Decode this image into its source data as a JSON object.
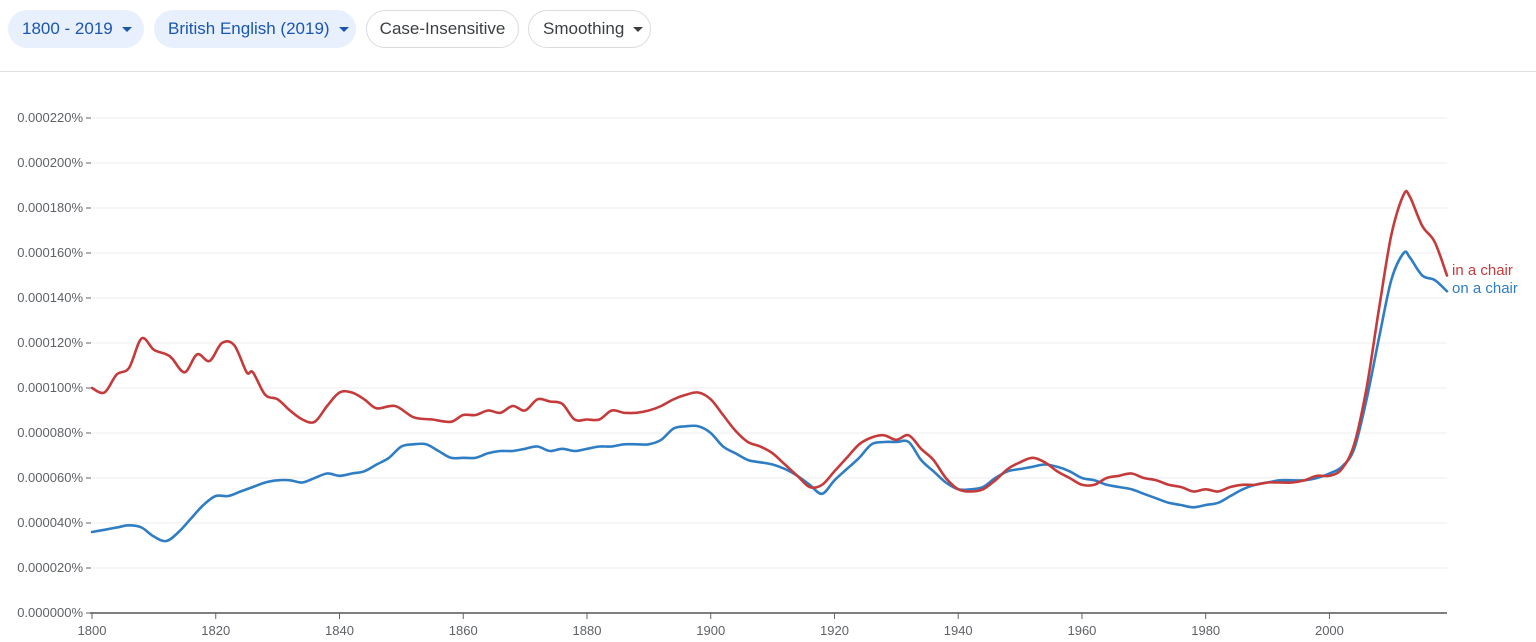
{
  "toolbar": {
    "years": "1800 - 2019",
    "corpus": "British English (2019)",
    "case": "Case-Insensitive",
    "smoothing": "Smoothing"
  },
  "colors": {
    "chip_bg": "#e8f0fe",
    "chip_text": "#1a56b0",
    "in_a_chair": "#c53b3b",
    "on_a_chair": "#2f7ec5"
  },
  "chart_data": {
    "type": "line",
    "title": "",
    "xlabel": "",
    "ylabel": "",
    "xlim": [
      1800,
      2019
    ],
    "ylim": [
      0,
      0.00022
    ],
    "x_ticks": [
      1800,
      1820,
      1840,
      1860,
      1880,
      1900,
      1920,
      1940,
      1960,
      1980,
      2000
    ],
    "x_tick_labels": [
      "1800",
      "1820",
      "1840",
      "1860",
      "1880",
      "1900",
      "1920",
      "1940",
      "1960",
      "1980",
      "2000"
    ],
    "y_ticks": [
      0,
      2e-05,
      4e-05,
      6e-05,
      8e-05,
      0.0001,
      0.00012,
      0.00014,
      0.00016,
      0.00018,
      0.0002,
      0.00022
    ],
    "y_tick_labels": [
      "0.000000%",
      "0.000020%",
      "0.000040%",
      "0.000060%",
      "0.000080%",
      "0.000100%",
      "0.000120%",
      "0.000140%",
      "0.000160%",
      "0.000180%",
      "0.000200%",
      "0.000220%"
    ],
    "grid": true,
    "series": [
      {
        "name": "in a chair",
        "color": "#c53b3b",
        "points": [
          [
            1800,
            0.0001
          ],
          [
            1802,
            9.8e-05
          ],
          [
            1804,
            0.000106
          ],
          [
            1806,
            0.000109
          ],
          [
            1808,
            0.000122
          ],
          [
            1810,
            0.000117
          ],
          [
            1812,
            0.000115
          ],
          [
            1813,
            0.000113
          ],
          [
            1815,
            0.000107
          ],
          [
            1817,
            0.000115
          ],
          [
            1819,
            0.000112
          ],
          [
            1821,
            0.00012
          ],
          [
            1823,
            0.000119
          ],
          [
            1825,
            0.000107
          ],
          [
            1826,
            0.000107
          ],
          [
            1828,
            9.7e-05
          ],
          [
            1830,
            9.5e-05
          ],
          [
            1832,
            9e-05
          ],
          [
            1834,
            8.6e-05
          ],
          [
            1836,
            8.5e-05
          ],
          [
            1838,
            9.2e-05
          ],
          [
            1840,
            9.8e-05
          ],
          [
            1842,
            9.8e-05
          ],
          [
            1844,
            9.5e-05
          ],
          [
            1846,
            9.1e-05
          ],
          [
            1849,
            9.2e-05
          ],
          [
            1852,
            8.7e-05
          ],
          [
            1855,
            8.6e-05
          ],
          [
            1858,
            8.5e-05
          ],
          [
            1860,
            8.8e-05
          ],
          [
            1862,
            8.8e-05
          ],
          [
            1864,
            9e-05
          ],
          [
            1866,
            8.9e-05
          ],
          [
            1868,
            9.2e-05
          ],
          [
            1870,
            9e-05
          ],
          [
            1872,
            9.5e-05
          ],
          [
            1874,
            9.4e-05
          ],
          [
            1876,
            9.3e-05
          ],
          [
            1878,
            8.6e-05
          ],
          [
            1880,
            8.6e-05
          ],
          [
            1882,
            8.6e-05
          ],
          [
            1884,
            9e-05
          ],
          [
            1886,
            8.9e-05
          ],
          [
            1888,
            8.9e-05
          ],
          [
            1890,
            9e-05
          ],
          [
            1892,
            9.2e-05
          ],
          [
            1894,
            9.5e-05
          ],
          [
            1896,
            9.7e-05
          ],
          [
            1898,
            9.8e-05
          ],
          [
            1900,
            9.5e-05
          ],
          [
            1902,
            8.8e-05
          ],
          [
            1904,
            8.1e-05
          ],
          [
            1906,
            7.6e-05
          ],
          [
            1908,
            7.4e-05
          ],
          [
            1910,
            7.1e-05
          ],
          [
            1912,
            6.6e-05
          ],
          [
            1914,
            6.1e-05
          ],
          [
            1916,
            5.6e-05
          ],
          [
            1918,
            5.7e-05
          ],
          [
            1920,
            6.3e-05
          ],
          [
            1922,
            6.9e-05
          ],
          [
            1924,
            7.5e-05
          ],
          [
            1926,
            7.8e-05
          ],
          [
            1928,
            7.9e-05
          ],
          [
            1930,
            7.7e-05
          ],
          [
            1932,
            7.9e-05
          ],
          [
            1934,
            7.3e-05
          ],
          [
            1936,
            6.8e-05
          ],
          [
            1938,
            6e-05
          ],
          [
            1940,
            5.5e-05
          ],
          [
            1942,
            5.4e-05
          ],
          [
            1944,
            5.5e-05
          ],
          [
            1946,
            5.9e-05
          ],
          [
            1948,
            6.4e-05
          ],
          [
            1950,
            6.7e-05
          ],
          [
            1952,
            6.9e-05
          ],
          [
            1954,
            6.7e-05
          ],
          [
            1956,
            6.3e-05
          ],
          [
            1958,
            6e-05
          ],
          [
            1960,
            5.7e-05
          ],
          [
            1962,
            5.7e-05
          ],
          [
            1964,
            6e-05
          ],
          [
            1966,
            6.1e-05
          ],
          [
            1968,
            6.2e-05
          ],
          [
            1970,
            6e-05
          ],
          [
            1972,
            5.9e-05
          ],
          [
            1974,
            5.7e-05
          ],
          [
            1976,
            5.6e-05
          ],
          [
            1978,
            5.4e-05
          ],
          [
            1980,
            5.5e-05
          ],
          [
            1982,
            5.4e-05
          ],
          [
            1984,
            5.6e-05
          ],
          [
            1986,
            5.7e-05
          ],
          [
            1988,
            5.7e-05
          ],
          [
            1990,
            5.8e-05
          ],
          [
            1992,
            5.8e-05
          ],
          [
            1994,
            5.8e-05
          ],
          [
            1996,
            5.9e-05
          ],
          [
            1998,
            6.1e-05
          ],
          [
            2000,
            6.1e-05
          ],
          [
            2002,
            6.4e-05
          ],
          [
            2004,
            7.5e-05
          ],
          [
            2006,
            0.0001
          ],
          [
            2008,
            0.000135
          ],
          [
            2010,
            0.000168
          ],
          [
            2012,
            0.000186
          ],
          [
            2013,
            0.000185
          ],
          [
            2015,
            0.000172
          ],
          [
            2017,
            0.000165
          ],
          [
            2019,
            0.00015
          ]
        ]
      },
      {
        "name": "on a chair",
        "color": "#2f7ec5",
        "points": [
          [
            1800,
            3.6e-05
          ],
          [
            1802,
            3.7e-05
          ],
          [
            1804,
            3.8e-05
          ],
          [
            1806,
            3.9e-05
          ],
          [
            1808,
            3.8e-05
          ],
          [
            1810,
            3.4e-05
          ],
          [
            1812,
            3.2e-05
          ],
          [
            1814,
            3.6e-05
          ],
          [
            1816,
            4.2e-05
          ],
          [
            1818,
            4.8e-05
          ],
          [
            1820,
            5.2e-05
          ],
          [
            1822,
            5.2e-05
          ],
          [
            1824,
            5.4e-05
          ],
          [
            1826,
            5.6e-05
          ],
          [
            1828,
            5.8e-05
          ],
          [
            1830,
            5.9e-05
          ],
          [
            1832,
            5.9e-05
          ],
          [
            1834,
            5.8e-05
          ],
          [
            1836,
            6e-05
          ],
          [
            1838,
            6.2e-05
          ],
          [
            1840,
            6.1e-05
          ],
          [
            1842,
            6.2e-05
          ],
          [
            1844,
            6.3e-05
          ],
          [
            1846,
            6.6e-05
          ],
          [
            1848,
            6.9e-05
          ],
          [
            1850,
            7.4e-05
          ],
          [
            1852,
            7.5e-05
          ],
          [
            1854,
            7.5e-05
          ],
          [
            1856,
            7.2e-05
          ],
          [
            1858,
            6.9e-05
          ],
          [
            1860,
            6.9e-05
          ],
          [
            1862,
            6.9e-05
          ],
          [
            1864,
            7.1e-05
          ],
          [
            1866,
            7.2e-05
          ],
          [
            1868,
            7.2e-05
          ],
          [
            1870,
            7.3e-05
          ],
          [
            1872,
            7.4e-05
          ],
          [
            1874,
            7.2e-05
          ],
          [
            1876,
            7.3e-05
          ],
          [
            1878,
            7.2e-05
          ],
          [
            1880,
            7.3e-05
          ],
          [
            1882,
            7.4e-05
          ],
          [
            1884,
            7.4e-05
          ],
          [
            1886,
            7.5e-05
          ],
          [
            1888,
            7.5e-05
          ],
          [
            1890,
            7.5e-05
          ],
          [
            1892,
            7.7e-05
          ],
          [
            1894,
            8.2e-05
          ],
          [
            1896,
            8.3e-05
          ],
          [
            1898,
            8.3e-05
          ],
          [
            1900,
            8e-05
          ],
          [
            1902,
            7.4e-05
          ],
          [
            1904,
            7.1e-05
          ],
          [
            1906,
            6.8e-05
          ],
          [
            1908,
            6.7e-05
          ],
          [
            1910,
            6.6e-05
          ],
          [
            1912,
            6.4e-05
          ],
          [
            1914,
            6.1e-05
          ],
          [
            1916,
            5.7e-05
          ],
          [
            1918,
            5.3e-05
          ],
          [
            1920,
            5.9e-05
          ],
          [
            1922,
            6.4e-05
          ],
          [
            1924,
            6.9e-05
          ],
          [
            1926,
            7.5e-05
          ],
          [
            1928,
            7.6e-05
          ],
          [
            1930,
            7.6e-05
          ],
          [
            1932,
            7.6e-05
          ],
          [
            1934,
            6.8e-05
          ],
          [
            1936,
            6.3e-05
          ],
          [
            1938,
            5.8e-05
          ],
          [
            1940,
            5.5e-05
          ],
          [
            1942,
            5.5e-05
          ],
          [
            1944,
            5.6e-05
          ],
          [
            1946,
            6e-05
          ],
          [
            1948,
            6.3e-05
          ],
          [
            1950,
            6.4e-05
          ],
          [
            1952,
            6.5e-05
          ],
          [
            1954,
            6.6e-05
          ],
          [
            1956,
            6.5e-05
          ],
          [
            1958,
            6.3e-05
          ],
          [
            1960,
            6e-05
          ],
          [
            1962,
            5.9e-05
          ],
          [
            1964,
            5.7e-05
          ],
          [
            1966,
            5.6e-05
          ],
          [
            1968,
            5.5e-05
          ],
          [
            1970,
            5.3e-05
          ],
          [
            1972,
            5.1e-05
          ],
          [
            1974,
            4.9e-05
          ],
          [
            1976,
            4.8e-05
          ],
          [
            1978,
            4.7e-05
          ],
          [
            1980,
            4.8e-05
          ],
          [
            1982,
            4.9e-05
          ],
          [
            1984,
            5.2e-05
          ],
          [
            1986,
            5.5e-05
          ],
          [
            1988,
            5.7e-05
          ],
          [
            1990,
            5.8e-05
          ],
          [
            1992,
            5.9e-05
          ],
          [
            1994,
            5.9e-05
          ],
          [
            1996,
            5.9e-05
          ],
          [
            1998,
            6e-05
          ],
          [
            2000,
            6.2e-05
          ],
          [
            2002,
            6.5e-05
          ],
          [
            2004,
            7.3e-05
          ],
          [
            2006,
            9.5e-05
          ],
          [
            2008,
            0.000122
          ],
          [
            2010,
            0.000148
          ],
          [
            2012,
            0.00016
          ],
          [
            2013,
            0.000158
          ],
          [
            2015,
            0.00015
          ],
          [
            2017,
            0.000148
          ],
          [
            2019,
            0.000143
          ]
        ]
      }
    ]
  }
}
